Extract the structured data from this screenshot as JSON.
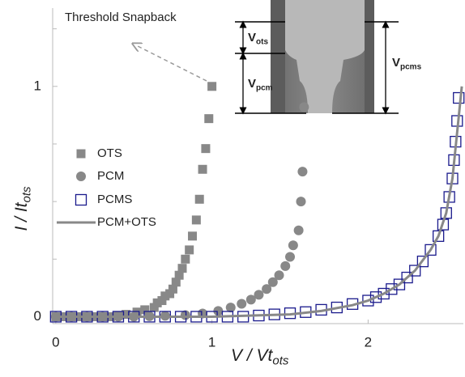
{
  "chart_data": {
    "type": "scatter",
    "annotation": "Threshold Snapback",
    "xlabel": {
      "main": "V / Vt",
      "sub": "ots"
    },
    "ylabel": {
      "main": "I / It",
      "sub": "ots"
    },
    "inset_labels": [
      {
        "main": "V",
        "sub": "ots"
      },
      {
        "main": "V",
        "sub": "pcm"
      },
      {
        "main": "V",
        "sub": "pcms"
      }
    ],
    "xlim": [
      -0.02,
      2.61
    ],
    "ylim": [
      -0.03,
      1.34
    ],
    "xticks": [
      0,
      1,
      2
    ],
    "yticks": [
      0,
      1
    ],
    "yminorticks": [
      0.25,
      0.5,
      0.75,
      1.25
    ],
    "series": [
      {
        "name": "OTS",
        "marker": "square",
        "color": "#888888",
        "x": [
          0,
          0.05,
          0.1,
          0.15,
          0.2,
          0.25,
          0.3,
          0.35,
          0.4,
          0.45,
          0.52,
          0.57,
          0.63,
          0.65,
          0.68,
          0.7,
          0.73,
          0.75,
          0.77,
          0.79,
          0.81,
          0.83,
          0.855,
          0.875,
          0.9,
          0.92,
          0.94,
          0.96,
          0.98,
          1.0
        ],
        "values": [
          0,
          0,
          0,
          0,
          0,
          0,
          0,
          0,
          0.005,
          0.01,
          0.02,
          0.03,
          0.04,
          0.06,
          0.07,
          0.09,
          0.1,
          0.12,
          0.15,
          0.18,
          0.21,
          0.25,
          0.29,
          0.35,
          0.42,
          0.51,
          0.64,
          0.73,
          0.86,
          1.0
        ]
      },
      {
        "name": "PCM",
        "marker": "circle",
        "color": "#888888",
        "x": [
          0,
          0.1,
          0.2,
          0.3,
          0.4,
          0.5,
          0.6,
          0.7,
          0.83,
          0.94,
          1.04,
          1.12,
          1.19,
          1.25,
          1.3,
          1.35,
          1.39,
          1.43,
          1.47,
          1.5,
          1.52,
          1.555,
          1.57,
          1.58,
          1.59
        ],
        "values": [
          0,
          0,
          0,
          0,
          0,
          0,
          0.002,
          0.004,
          0.007,
          0.014,
          0.025,
          0.04,
          0.056,
          0.074,
          0.095,
          0.12,
          0.15,
          0.18,
          0.22,
          0.26,
          0.31,
          0.375,
          0.5,
          0.63,
          0.91
        ]
      },
      {
        "name": "PCMS",
        "marker": "open-square",
        "color": "#1a1a8c",
        "x": [
          0,
          0.1,
          0.2,
          0.3,
          0.4,
          0.5,
          0.6,
          0.7,
          0.8,
          0.9,
          1.0,
          1.1,
          1.2,
          1.3,
          1.4,
          1.5,
          1.6,
          1.7,
          1.8,
          1.9,
          2.0,
          2.05,
          2.1,
          2.15,
          2.2,
          2.25,
          2.3,
          2.35,
          2.4,
          2.45,
          2.48,
          2.5,
          2.52,
          2.54,
          2.55,
          2.56,
          2.57,
          2.58
        ],
        "values": [
          0,
          0,
          0,
          0,
          0,
          0,
          0,
          0,
          0,
          0,
          0,
          0,
          0,
          0.005,
          0.01,
          0.015,
          0.02,
          0.03,
          0.04,
          0.055,
          0.07,
          0.085,
          0.1,
          0.12,
          0.14,
          0.17,
          0.2,
          0.24,
          0.29,
          0.35,
          0.4,
          0.45,
          0.52,
          0.6,
          0.68,
          0.76,
          0.85,
          0.95
        ]
      },
      {
        "name": "PCM+OTS",
        "marker": "line",
        "color": "#888888",
        "x": [
          0,
          1.0,
          1.5,
          1.7,
          1.9,
          2.0,
          2.1,
          2.2,
          2.3,
          2.4,
          2.45,
          2.5,
          2.54,
          2.57,
          2.6
        ],
        "values": [
          0,
          0,
          0.01,
          0.025,
          0.05,
          0.07,
          0.1,
          0.14,
          0.2,
          0.29,
          0.35,
          0.45,
          0.6,
          0.8,
          1.0
        ]
      }
    ]
  }
}
